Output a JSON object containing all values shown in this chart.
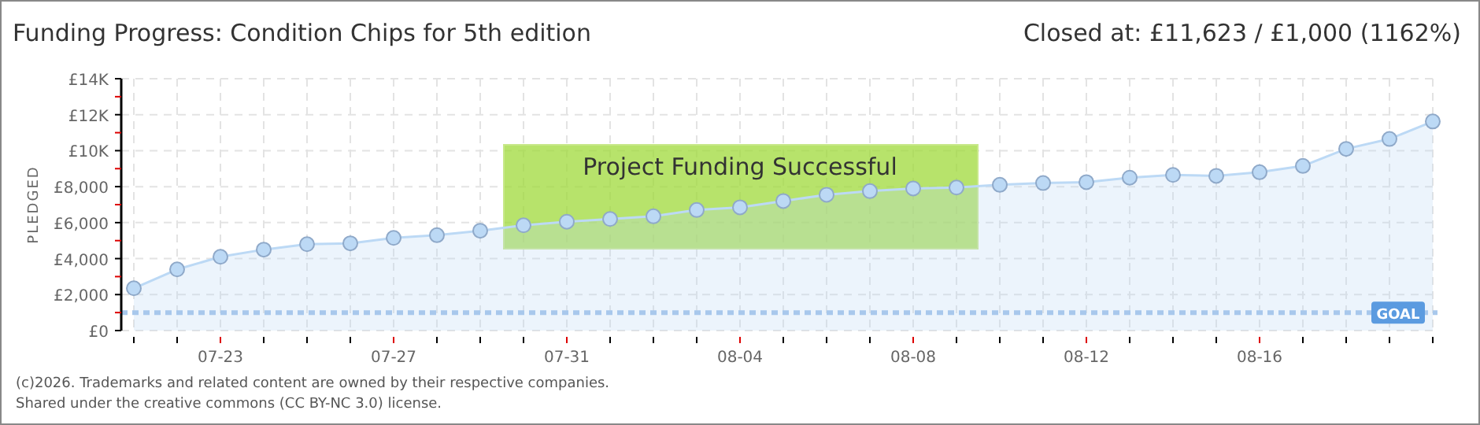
{
  "chart_data": {
    "type": "area",
    "title": "Funding Progress: Condition Chips for 5th edition",
    "subtitle": "Closed at: £11,623 / £1,000 (1162%)",
    "ylabel": "PLEDGED",
    "categories": [
      null,
      null,
      "07-23",
      null,
      null,
      null,
      "07-27",
      null,
      null,
      null,
      "07-31",
      null,
      null,
      null,
      "08-04",
      null,
      null,
      null,
      "08-08",
      null,
      null,
      null,
      "08-12",
      null,
      null,
      null,
      "08-16",
      null,
      null,
      null,
      null
    ],
    "series": [
      {
        "color": "#bcd9f5",
        "values": [
          2350,
          3400,
          4100,
          4500,
          4800,
          4850,
          5150,
          5300,
          5550,
          5850,
          6050,
          6200,
          6350,
          6700,
          6850,
          7200,
          7550,
          7750,
          7900,
          7950,
          8100,
          8200,
          8250,
          8500,
          8650,
          8600,
          8800,
          9150,
          10100,
          10650,
          11623
        ]
      }
    ],
    "ylim": [
      0,
      14000
    ],
    "yticks": [
      {
        "value": 0,
        "label": "£0"
      },
      {
        "value": 1000,
        "label": null
      },
      {
        "value": 2000,
        "label": "£2,000"
      },
      {
        "value": 3000,
        "label": null
      },
      {
        "value": 4000,
        "label": "£4,000"
      },
      {
        "value": 5000,
        "label": null
      },
      {
        "value": 6000,
        "label": "£6,000"
      },
      {
        "value": 7000,
        "label": null
      },
      {
        "value": 8000,
        "label": "£8,000"
      },
      {
        "value": 9000,
        "label": null
      },
      {
        "value": 10000,
        "label": "£10K"
      },
      {
        "value": 11000,
        "label": null
      },
      {
        "value": 12000,
        "label": "£12K"
      },
      {
        "value": 13000,
        "label": null
      },
      {
        "value": 14000,
        "label": "£14K"
      }
    ],
    "ref_lines": [
      {
        "axis": "y",
        "value": 1000,
        "label": "GOAL",
        "color": "#a8c8ec",
        "line_style": "dashed"
      }
    ],
    "annotations": [
      "Project Funding Successful",
      "(c)2026. Trademarks and related content are owned by their respective companies.",
      "Shared under the creative commons (CC BY-NC 3.0) license."
    ],
    "grid": true,
    "marker": "circle"
  }
}
